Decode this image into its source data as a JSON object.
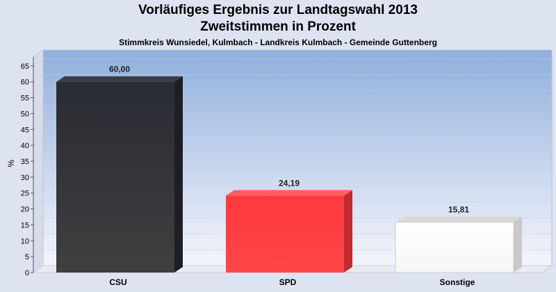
{
  "chart_data": {
    "type": "bar",
    "title": "Vorläufiges Ergebnis zur Landtagswahl 2013",
    "subtitle": "Zweitstimmen in Prozent",
    "caption": "Stimmkreis Wunsiedel, Kulmbach - Landkreis Kulmbach - Gemeinde Guttenberg",
    "ylabel": "%",
    "xlabel": "",
    "ylim": [
      0,
      70
    ],
    "yticks": [
      0,
      5,
      10,
      15,
      20,
      25,
      30,
      35,
      40,
      45,
      50,
      55,
      60,
      65
    ],
    "categories": [
      "CSU",
      "SPD",
      "Sonstige"
    ],
    "values": [
      60.0,
      24.19,
      15.81
    ],
    "value_labels": [
      "60,00",
      "24,19",
      "15,81"
    ],
    "colors": [
      "#2b2d33",
      "#ff3a3e",
      "#ffffff"
    ],
    "grid": true,
    "legend": "none"
  }
}
